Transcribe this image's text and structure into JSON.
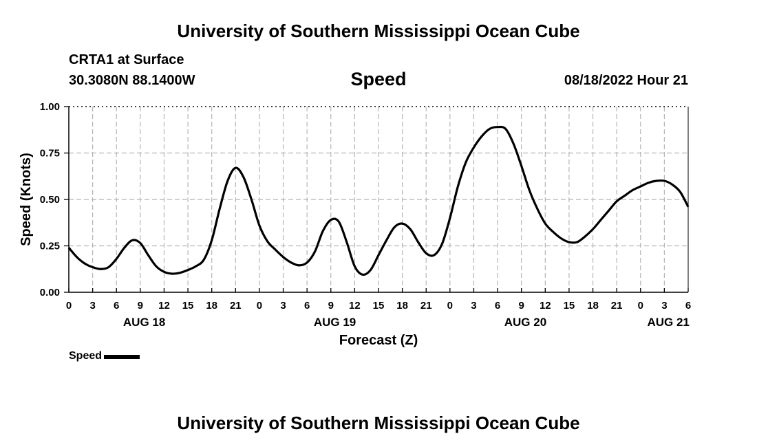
{
  "header": {
    "title": "University of Southern Mississippi Ocean Cube",
    "station": "CRTA1 at Surface",
    "coordinates": "30.3080N  88.1400W",
    "timestamp": "08/18/2022 Hour 21"
  },
  "footer": {
    "title": "University of Southern Mississippi Ocean Cube"
  },
  "chart_data": {
    "type": "line",
    "title": "Speed",
    "xlabel": "Forecast (Z)",
    "ylabel": "Speed (Knots)",
    "xlim": [
      0,
      78
    ],
    "ylim": [
      0,
      1
    ],
    "grid": true,
    "legend_position": "bottom-left",
    "y_ticks": [
      0,
      0.25,
      0.5,
      0.75,
      1.0
    ],
    "y_tick_labels": [
      "0.00",
      "0.25",
      "0.50",
      "0.75",
      "1.00"
    ],
    "x_ticks": [
      0,
      3,
      6,
      9,
      12,
      15,
      18,
      21,
      24,
      27,
      30,
      33,
      36,
      39,
      42,
      45,
      48,
      51,
      54,
      57,
      60,
      63,
      66,
      69,
      72,
      75,
      78
    ],
    "x_tick_labels": [
      "0",
      "3",
      "6",
      "9",
      "12",
      "15",
      "18",
      "21",
      "0",
      "3",
      "6",
      "9",
      "12",
      "15",
      "18",
      "21",
      "0",
      "3",
      "6",
      "9",
      "12",
      "15",
      "18",
      "21",
      "0",
      "3",
      "6"
    ],
    "day_labels": [
      {
        "hour": 9.5,
        "label": "AUG 18"
      },
      {
        "hour": 33.5,
        "label": "AUG 19"
      },
      {
        "hour": 57.5,
        "label": "AUG 20"
      },
      {
        "hour": 75.5,
        "label": "AUG 21"
      }
    ],
    "series": [
      {
        "name": "Speed",
        "color": "#000000",
        "x": [
          0,
          1,
          2,
          3,
          4,
          5,
          6,
          7,
          8,
          9,
          10,
          11,
          12,
          13,
          14,
          15,
          16,
          17,
          18,
          19,
          20,
          21,
          22,
          23,
          24,
          25,
          26,
          27,
          28,
          29,
          30,
          31,
          32,
          33,
          34,
          35,
          36,
          37,
          38,
          39,
          40,
          41,
          42,
          43,
          44,
          45,
          46,
          47,
          48,
          49,
          50,
          51,
          52,
          53,
          54,
          55,
          56,
          57,
          58,
          59,
          60,
          61,
          62,
          63,
          64,
          65,
          66,
          67,
          68,
          69,
          70,
          71,
          72,
          73,
          74,
          75,
          76,
          77,
          78
        ],
        "values": [
          0.24,
          0.19,
          0.155,
          0.135,
          0.125,
          0.135,
          0.18,
          0.24,
          0.28,
          0.265,
          0.2,
          0.14,
          0.11,
          0.1,
          0.105,
          0.12,
          0.14,
          0.175,
          0.28,
          0.45,
          0.6,
          0.67,
          0.62,
          0.5,
          0.36,
          0.275,
          0.23,
          0.19,
          0.16,
          0.145,
          0.16,
          0.22,
          0.33,
          0.39,
          0.38,
          0.27,
          0.14,
          0.095,
          0.12,
          0.2,
          0.28,
          0.35,
          0.37,
          0.34,
          0.27,
          0.21,
          0.2,
          0.26,
          0.4,
          0.57,
          0.7,
          0.78,
          0.84,
          0.88,
          0.89,
          0.88,
          0.8,
          0.68,
          0.55,
          0.45,
          0.37,
          0.325,
          0.29,
          0.27,
          0.27,
          0.3,
          0.34,
          0.39,
          0.44,
          0.49,
          0.52,
          0.55,
          0.57,
          0.59,
          0.6,
          0.6,
          0.58,
          0.54,
          0.46
        ]
      }
    ]
  }
}
